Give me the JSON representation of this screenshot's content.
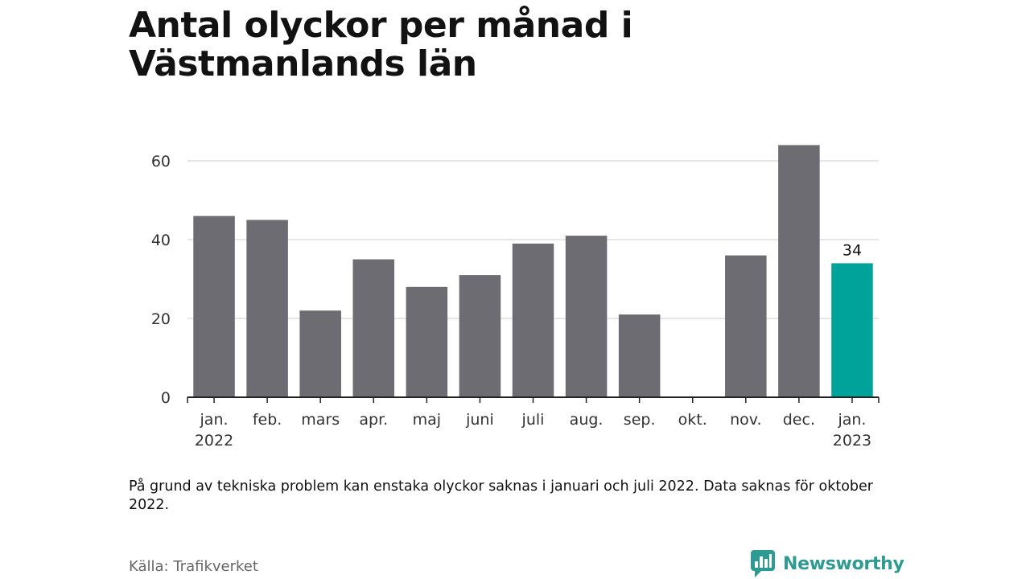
{
  "title": "Antal olyckor per månad i Västmanlands län",
  "note": "På grund av tekniska problem kan enstaka olyckor saknas i januari och juli 2022. Data saknas för oktober 2022.",
  "source": "Källa: Trafikverket",
  "brand": {
    "name": "Newsworthy",
    "logo_icon": "newsworthy-logo-icon"
  },
  "colors": {
    "bar": "#6d6c73",
    "highlight": "#00a39a",
    "grid": "#dddddd",
    "axis": "#222222",
    "brand": "#2e9b93"
  },
  "chart_data": {
    "type": "bar",
    "categories": [
      "jan.\n2022",
      "feb.",
      "mars",
      "apr.",
      "maj",
      "juni",
      "juli",
      "aug.",
      "sep.",
      "okt.",
      "nov.",
      "dec.",
      "jan.\n2023"
    ],
    "series": [
      {
        "values": [
          46,
          45,
          22,
          35,
          28,
          31,
          39,
          41,
          21,
          null,
          36,
          64,
          34
        ]
      }
    ],
    "highlight_index": 12,
    "data_labels": [
      {
        "index": 12,
        "text": "34"
      }
    ],
    "yticks": [
      0,
      20,
      40,
      60
    ],
    "ylim": [
      0,
      65
    ],
    "xlabel": "",
    "ylabel": "",
    "grid": true,
    "legend": "none"
  }
}
